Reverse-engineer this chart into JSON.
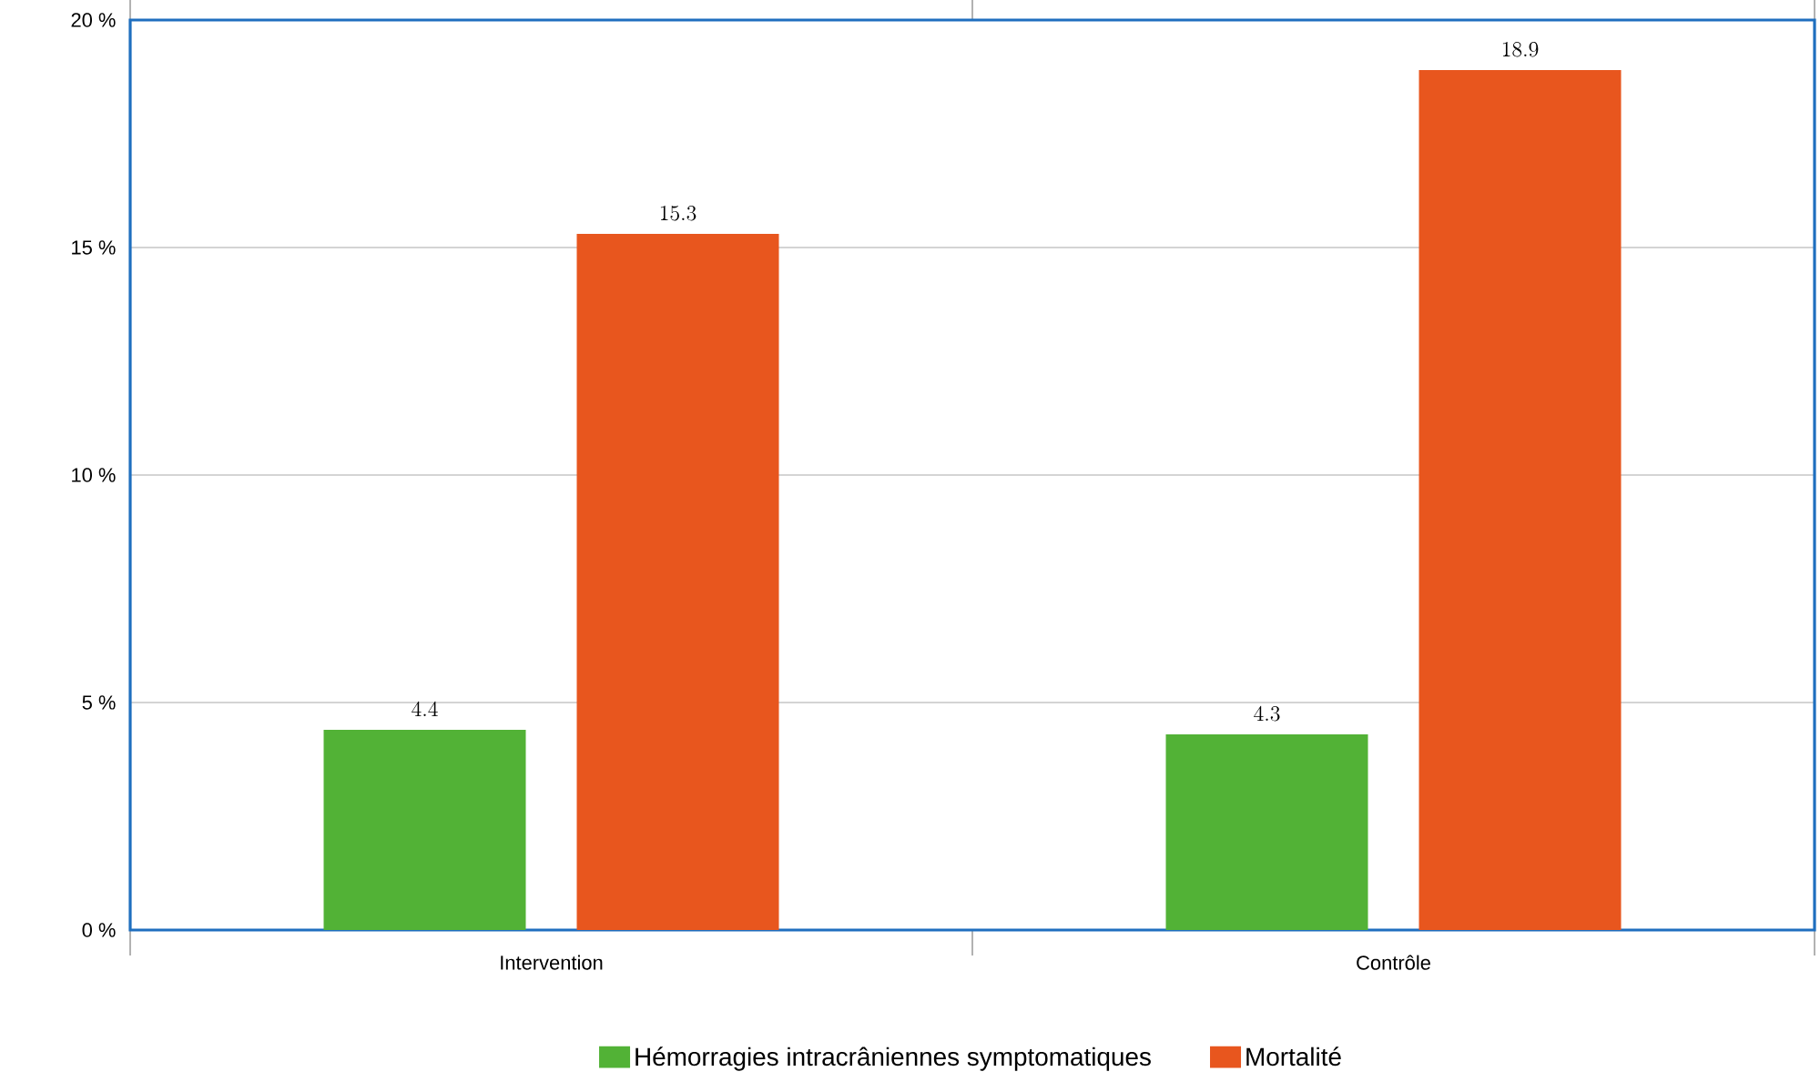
{
  "chart_data": {
    "type": "bar",
    "categories": [
      "Intervention",
      "Contrôle"
    ],
    "series": [
      {
        "name": "Hémorragies intracrâniennes symptomatiques",
        "color": "#52b236",
        "values": [
          4.4,
          4.3
        ]
      },
      {
        "name": "Mortalité",
        "color": "#e8561e",
        "values": [
          15.3,
          18.9
        ]
      }
    ],
    "ylim": [
      0,
      20
    ],
    "yticks": [
      {
        "value": 0,
        "label": "0 %"
      },
      {
        "value": 5,
        "label": "5 %"
      },
      {
        "value": 10,
        "label": "10 %"
      },
      {
        "value": 15,
        "label": "15 %"
      },
      {
        "value": 20,
        "label": "20 %"
      }
    ],
    "grid": "y",
    "legend": "bottom",
    "data_labels": true
  }
}
